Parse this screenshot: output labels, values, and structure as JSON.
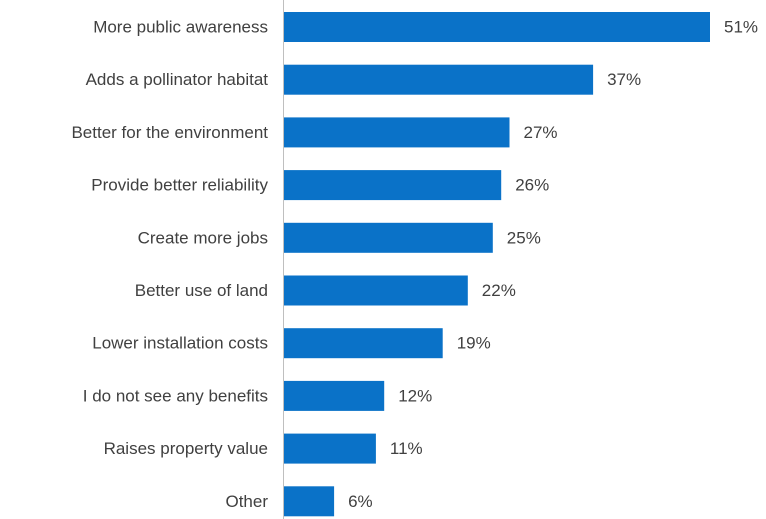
{
  "chart_data": {
    "type": "bar",
    "orientation": "horizontal",
    "title": "",
    "xlabel": "",
    "ylabel": "",
    "categories": [
      "More public awareness",
      "Adds a pollinator habitat",
      "Better for the environment",
      "Provide better reliability",
      "Create more jobs",
      "Better use of land",
      "Lower installation costs",
      "I do not see any benefits",
      "Raises property value",
      "Other"
    ],
    "values": [
      51,
      37,
      27,
      26,
      25,
      22,
      19,
      12,
      11,
      6
    ],
    "value_labels": [
      "51%",
      "37%",
      "27%",
      "26%",
      "25%",
      "22%",
      "19%",
      "12%",
      "11%",
      "6%"
    ],
    "unit": "%",
    "xlim": [
      0,
      51
    ],
    "grid": false,
    "legend": "none",
    "colors": {
      "bar": "#0a72c8",
      "text": "#404040",
      "axis": "#bfbfbf"
    }
  }
}
